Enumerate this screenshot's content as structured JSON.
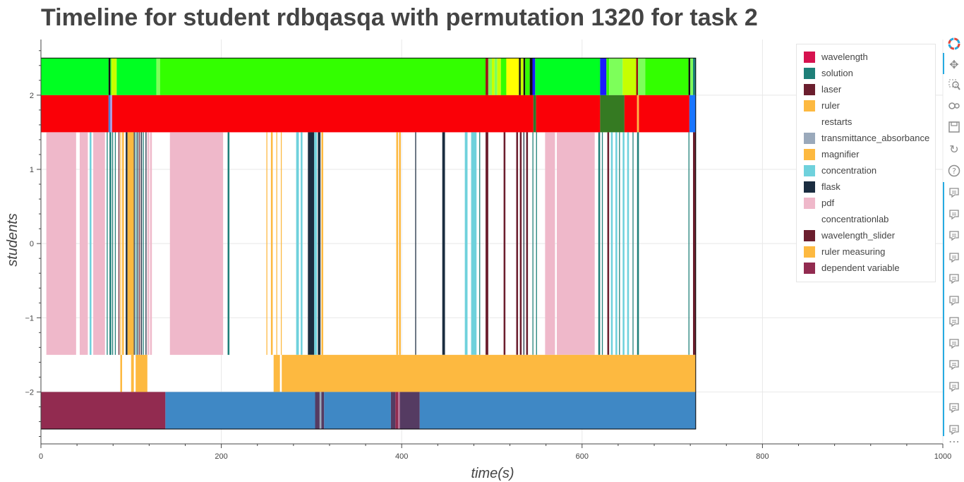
{
  "title": "Timeline for student rdbqasqa with permutation 1320 for task 2",
  "chart_data": {
    "type": "timeline",
    "xlabel": "time(s)",
    "ylabel": "students",
    "xlim": [
      0,
      1000
    ],
    "ylim": [
      -2.7,
      2.75
    ],
    "x_ticks": [
      0,
      200,
      400,
      600,
      800,
      1000
    ],
    "x_tick_labels": [
      "0",
      "200",
      "400",
      "600",
      "800",
      "1000"
    ],
    "y_ticks": [
      2,
      1,
      0,
      -1,
      -2
    ],
    "y_tick_labels": [
      "2",
      "1",
      "0",
      "−1",
      "−2"
    ],
    "grid": true,
    "legend_position": "top-right",
    "legend": [
      {
        "label": "wavelength",
        "color": "#d6124f"
      },
      {
        "label": "solution",
        "color": "#1e7f78"
      },
      {
        "label": "laser",
        "color": "#6b1e2e"
      },
      {
        "label": "ruler",
        "color": "#fdb940"
      },
      {
        "label": "restarts",
        "color": "#ffffff"
      },
      {
        "label": "transmittance_absorbance",
        "color": "#9aa9bb"
      },
      {
        "label": "magnifier",
        "color": "#fdb940"
      },
      {
        "label": "concentration",
        "color": "#6fd1dc"
      },
      {
        "label": "flask",
        "color": "#1b2d40"
      },
      {
        "label": "pdf",
        "color": "#efb8ca"
      },
      {
        "label": "concentrationlab",
        "color": "#ffffff"
      },
      {
        "label": "wavelength_slider",
        "color": "#6b1e2e"
      },
      {
        "label": "ruler measuring",
        "color": "#fdb940"
      },
      {
        "label": "dependent variable",
        "color": "#922b50"
      }
    ],
    "rows": [
      {
        "y_range": [
          2.0,
          2.5
        ],
        "segments": [
          [
            0,
            75,
            "#00ff22"
          ],
          [
            75,
            77,
            "#111111"
          ],
          [
            77,
            78,
            "#00ff22"
          ],
          [
            78,
            84,
            "#c6ff00"
          ],
          [
            84,
            128,
            "#00ff22"
          ],
          [
            128,
            132,
            "#7dff5a"
          ],
          [
            132,
            493,
            "#33ff00"
          ],
          [
            493,
            496,
            "#9b1515"
          ],
          [
            496,
            500,
            "#7dff5a"
          ],
          [
            500,
            503,
            "#c6ff00"
          ],
          [
            503,
            506,
            "#7dff5a"
          ],
          [
            506,
            510,
            "#c6ff00"
          ],
          [
            510,
            516,
            "#33ff00"
          ],
          [
            516,
            530,
            "#ffff00"
          ],
          [
            530,
            532,
            "#111111"
          ],
          [
            532,
            535,
            "#c6ff00"
          ],
          [
            535,
            537,
            "#111111"
          ],
          [
            537,
            542,
            "#33ff00"
          ],
          [
            542,
            545,
            "#111111"
          ],
          [
            545,
            548,
            "#1a1aff"
          ],
          [
            548,
            620,
            "#00ff22"
          ],
          [
            620,
            627,
            "#1a1aff"
          ],
          [
            627,
            630,
            "#33ff00"
          ],
          [
            630,
            645,
            "#7dff5a"
          ],
          [
            645,
            660,
            "#c6ff00"
          ],
          [
            660,
            662,
            "#9b1515"
          ],
          [
            662,
            670,
            "#7dff5a"
          ],
          [
            670,
            718,
            "#33ff00"
          ],
          [
            718,
            720,
            "#111111"
          ],
          [
            720,
            723,
            "#7dff5a"
          ],
          [
            723,
            726,
            "#1e7f78"
          ]
        ]
      },
      {
        "y_range": [
          1.5,
          2.0
        ],
        "segments": [
          [
            0,
            75,
            "#fa0007"
          ],
          [
            75,
            77,
            "#4d79d6"
          ],
          [
            77,
            79,
            "#b39ddb"
          ],
          [
            79,
            546,
            "#fa0007"
          ],
          [
            546,
            549,
            "#2b7a2b"
          ],
          [
            549,
            620,
            "#fa0007"
          ],
          [
            620,
            647,
            "#357a22"
          ],
          [
            647,
            661,
            "#fa0007"
          ],
          [
            661,
            663,
            "#fdb940"
          ],
          [
            663,
            719,
            "#fa0007"
          ],
          [
            719,
            726,
            "#1a75ff"
          ]
        ]
      },
      {
        "y_range": [
          -1.5,
          1.5
        ],
        "segments": [
          [
            6,
            39,
            "#efb8ca"
          ],
          [
            43,
            52,
            "#efb8ca"
          ],
          [
            54,
            56,
            "#6fd1dc"
          ],
          [
            58,
            71,
            "#efb8ca"
          ],
          [
            73,
            74,
            "#1e7f78"
          ],
          [
            76,
            78,
            "#1e7f78"
          ],
          [
            79,
            80,
            "#1e7f78"
          ],
          [
            82,
            83,
            "#1e7f78"
          ],
          [
            86,
            87,
            "#6b1e2e"
          ],
          [
            88,
            89,
            "#fdb940"
          ],
          [
            90,
            92,
            "#fdb940"
          ],
          [
            94,
            96,
            "#1b2d40"
          ],
          [
            96,
            103,
            "#fdb940"
          ],
          [
            103,
            104,
            "#1b2d40"
          ],
          [
            105,
            106,
            "#1e7f78"
          ],
          [
            107,
            108,
            "#1b2d40"
          ],
          [
            109,
            110,
            "#6b1e2e"
          ],
          [
            111,
            112,
            "#1b2d40"
          ],
          [
            113,
            114,
            "#1e7f78"
          ],
          [
            116,
            117,
            "#1b2d40"
          ],
          [
            118,
            120,
            "#efb8ca"
          ],
          [
            121,
            123,
            "#efb8ca"
          ],
          [
            143,
            202,
            "#efb8ca"
          ],
          [
            207,
            209,
            "#1e7f78"
          ],
          [
            250,
            251,
            "#fdb940"
          ],
          [
            255,
            257,
            "#fdb940"
          ],
          [
            261,
            262,
            "#fdb940"
          ],
          [
            266,
            267,
            "#fdb940"
          ],
          [
            283,
            286,
            "#6fd1dc"
          ],
          [
            288,
            290,
            "#6fd1dc"
          ],
          [
            296,
            303,
            "#1b2d40"
          ],
          [
            303,
            306,
            "#6fd1dc"
          ],
          [
            307,
            310,
            "#1b2d40"
          ],
          [
            311,
            313,
            "#fdb940"
          ],
          [
            394,
            396,
            "#fdb940"
          ],
          [
            397,
            399,
            "#fdb940"
          ],
          [
            415,
            416,
            "#1b2d40"
          ],
          [
            445,
            448,
            "#1b2d40"
          ],
          [
            470,
            473,
            "#6fd1dc"
          ],
          [
            477,
            483,
            "#6fd1dc"
          ],
          [
            486,
            487,
            "#1e7f78"
          ],
          [
            493,
            496,
            "#6b1e2e"
          ],
          [
            513,
            515,
            "#6b1e2e"
          ],
          [
            527,
            529,
            "#6b1e2e"
          ],
          [
            531,
            533,
            "#6b1e2e"
          ],
          [
            535,
            536,
            "#1b2d40"
          ],
          [
            538,
            540,
            "#6b1e2e"
          ],
          [
            545,
            546,
            "#1e7f78"
          ],
          [
            549,
            550,
            "#1e7f78"
          ],
          [
            559,
            570,
            "#efb8ca"
          ],
          [
            572,
            614,
            "#efb8ca"
          ],
          [
            618,
            620,
            "#1e7f78"
          ],
          [
            622,
            623,
            "#1e7f78"
          ],
          [
            628,
            630,
            "#6b1e2e"
          ],
          [
            632,
            634,
            "#6fd1dc"
          ],
          [
            637,
            639,
            "#6fd1dc"
          ],
          [
            641,
            642,
            "#1e7f78"
          ],
          [
            645,
            647,
            "#6fd1dc"
          ],
          [
            650,
            652,
            "#6fd1dc"
          ],
          [
            656,
            657,
            "#1e7f78"
          ],
          [
            661,
            663,
            "#1e7f78"
          ],
          [
            718,
            719,
            "#1e7f78"
          ],
          [
            723,
            726,
            "#6b1e2e"
          ]
        ]
      },
      {
        "y_range": [
          -2.0,
          -1.5
        ],
        "segments": [
          [
            88,
            90,
            "#fdb940"
          ],
          [
            100,
            103,
            "#fdb940"
          ],
          [
            105,
            118,
            "#fdb940"
          ],
          [
            258,
            265,
            "#fdb940"
          ],
          [
            267,
            726,
            "#fdb940"
          ]
        ]
      },
      {
        "y_range": [
          -2.5,
          -2.0
        ],
        "segments": [
          [
            0,
            138,
            "#922b50"
          ],
          [
            138,
            304,
            "#3f88c5"
          ],
          [
            304,
            309,
            "#553b62"
          ],
          [
            309,
            311,
            "#9aa9bb"
          ],
          [
            311,
            314,
            "#553b62"
          ],
          [
            314,
            388,
            "#3f88c5"
          ],
          [
            388,
            393,
            "#553b62"
          ],
          [
            393,
            396,
            "#922b50"
          ],
          [
            396,
            398,
            "#b76e93"
          ],
          [
            398,
            420,
            "#553b62"
          ],
          [
            420,
            726,
            "#3f88c5"
          ]
        ]
      }
    ]
  }
}
